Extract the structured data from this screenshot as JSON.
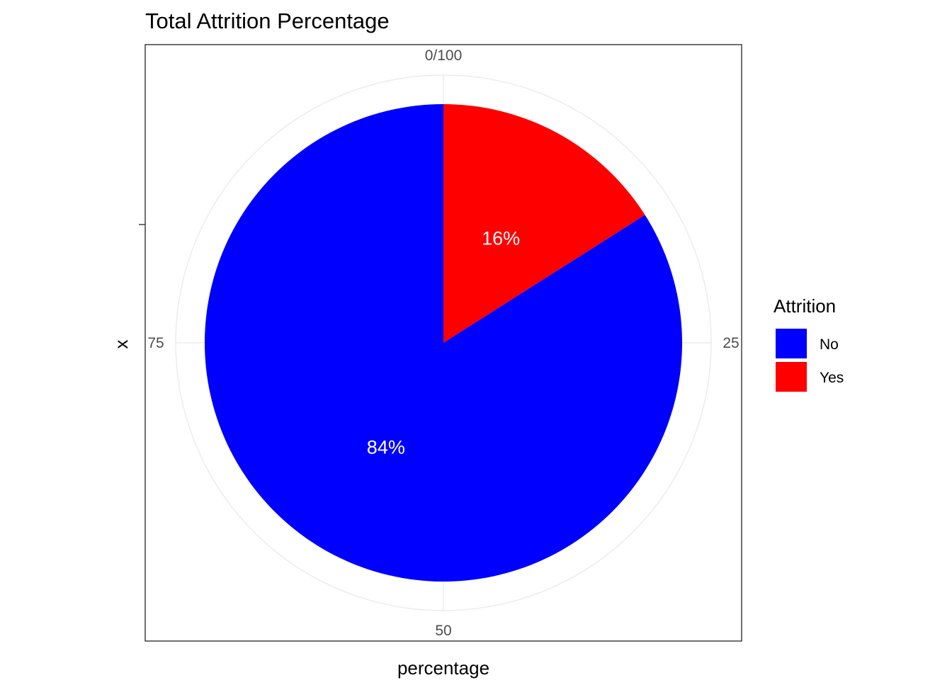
{
  "chart_data": {
    "type": "pie",
    "title": "Total Attrition Percentage",
    "xlabel": "percentage",
    "ylabel": "x",
    "theta_ticks": [
      {
        "value": 0,
        "label": "0/100"
      },
      {
        "value": 25,
        "label": "25"
      },
      {
        "value": 50,
        "label": "50"
      },
      {
        "value": 75,
        "label": "75"
      }
    ],
    "slices": [
      {
        "category": "No",
        "value": 84,
        "label": "84%",
        "color": "#0000FF"
      },
      {
        "category": "Yes",
        "value": 16,
        "label": "16%",
        "color": "#FF0000"
      }
    ],
    "legend": {
      "title": "Attrition",
      "placement": "right",
      "items": [
        {
          "label": "No",
          "color": "#0000FF"
        },
        {
          "label": "Yes",
          "color": "#FF0000"
        }
      ]
    },
    "theta_range": [
      0,
      100
    ],
    "direction": "clockwise",
    "start": "top",
    "grid": true,
    "panel_border": true
  }
}
